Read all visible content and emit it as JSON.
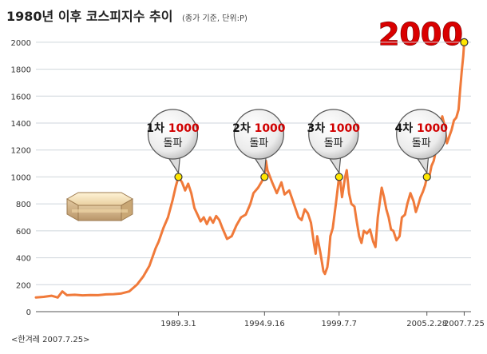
{
  "title": "1980년 이후 코스피지수 추이",
  "subtitle": "(종가 기준, 단위:P)",
  "credit": "<한겨레 2007.7.25>",
  "headline_value": "2000",
  "colors": {
    "line": "#f07a3a",
    "milestone_fill": "#ffe600",
    "headline": "#d90000",
    "gridline": "#cfd6dc"
  },
  "chart_data": {
    "type": "line",
    "title": "1980년 이후 코스피지수 추이",
    "subtitle": "(종가 기준, 단위:P)",
    "xlabel": "",
    "ylabel": "",
    "ylim": [
      0,
      2100
    ],
    "yticks": [
      0,
      200,
      400,
      600,
      800,
      1000,
      1200,
      1400,
      1600,
      1800,
      2000
    ],
    "xlim": [
      1980.0,
      2008.0
    ],
    "xtick_labels": [
      "1989.3.1",
      "1994.9.16",
      "1999.7.7",
      "2005.2.28",
      "2007.7.25"
    ],
    "xtick_values": [
      1989.17,
      1994.71,
      1999.51,
      2005.16,
      2007.56
    ],
    "grid": "horizontal",
    "legend": "none",
    "series": [
      {
        "values": [
          [
            1980.0,
            105
          ],
          [
            1980.5,
            110
          ],
          [
            1981.0,
            118
          ],
          [
            1981.4,
            105
          ],
          [
            1981.7,
            150
          ],
          [
            1982.0,
            122
          ],
          [
            1982.5,
            125
          ],
          [
            1983.0,
            121
          ],
          [
            1983.5,
            123
          ],
          [
            1984.0,
            122
          ],
          [
            1984.5,
            128
          ],
          [
            1985.0,
            130
          ],
          [
            1985.5,
            135
          ],
          [
            1986.0,
            150
          ],
          [
            1986.5,
            200
          ],
          [
            1986.9,
            260
          ],
          [
            1987.3,
            340
          ],
          [
            1987.7,
            470
          ],
          [
            1987.9,
            520
          ],
          [
            1988.2,
            620
          ],
          [
            1988.5,
            700
          ],
          [
            1988.8,
            830
          ],
          [
            1989.0,
            930
          ],
          [
            1989.17,
            1000
          ],
          [
            1989.4,
            960
          ],
          [
            1989.6,
            900
          ],
          [
            1989.8,
            950
          ],
          [
            1990.0,
            880
          ],
          [
            1990.2,
            770
          ],
          [
            1990.4,
            720
          ],
          [
            1990.6,
            670
          ],
          [
            1990.8,
            700
          ],
          [
            1991.0,
            650
          ],
          [
            1991.2,
            700
          ],
          [
            1991.4,
            660
          ],
          [
            1991.6,
            710
          ],
          [
            1991.8,
            680
          ],
          [
            1992.0,
            620
          ],
          [
            1992.3,
            540
          ],
          [
            1992.6,
            560
          ],
          [
            1992.9,
            640
          ],
          [
            1993.2,
            700
          ],
          [
            1993.5,
            720
          ],
          [
            1993.8,
            800
          ],
          [
            1994.0,
            880
          ],
          [
            1994.3,
            920
          ],
          [
            1994.71,
            1000
          ],
          [
            1994.8,
            1120
          ],
          [
            1994.9,
            1050
          ],
          [
            1995.2,
            960
          ],
          [
            1995.5,
            880
          ],
          [
            1995.8,
            960
          ],
          [
            1996.0,
            870
          ],
          [
            1996.3,
            900
          ],
          [
            1996.6,
            800
          ],
          [
            1996.9,
            700
          ],
          [
            1997.1,
            680
          ],
          [
            1997.3,
            760
          ],
          [
            1997.5,
            730
          ],
          [
            1997.7,
            660
          ],
          [
            1997.9,
            500
          ],
          [
            1998.0,
            430
          ],
          [
            1998.1,
            560
          ],
          [
            1998.3,
            440
          ],
          [
            1998.5,
            300
          ],
          [
            1998.6,
            280
          ],
          [
            1998.75,
            330
          ],
          [
            1998.85,
            420
          ],
          [
            1998.95,
            560
          ],
          [
            1999.1,
            620
          ],
          [
            1999.3,
            800
          ],
          [
            1999.51,
            1000
          ],
          [
            1999.6,
            960
          ],
          [
            1999.7,
            850
          ],
          [
            1999.9,
            1000
          ],
          [
            2000.0,
            1050
          ],
          [
            2000.15,
            880
          ],
          [
            2000.3,
            800
          ],
          [
            2000.5,
            780
          ],
          [
            2000.6,
            700
          ],
          [
            2000.8,
            560
          ],
          [
            2000.95,
            510
          ],
          [
            2001.1,
            600
          ],
          [
            2001.3,
            580
          ],
          [
            2001.5,
            610
          ],
          [
            2001.7,
            520
          ],
          [
            2001.85,
            480
          ],
          [
            2002.0,
            700
          ],
          [
            2002.25,
            920
          ],
          [
            2002.4,
            850
          ],
          [
            2002.55,
            760
          ],
          [
            2002.7,
            700
          ],
          [
            2002.85,
            610
          ],
          [
            2003.0,
            600
          ],
          [
            2003.2,
            530
          ],
          [
            2003.4,
            560
          ],
          [
            2003.55,
            700
          ],
          [
            2003.75,
            720
          ],
          [
            2003.9,
            800
          ],
          [
            2004.1,
            880
          ],
          [
            2004.3,
            820
          ],
          [
            2004.45,
            740
          ],
          [
            2004.6,
            790
          ],
          [
            2004.75,
            850
          ],
          [
            2004.9,
            890
          ],
          [
            2005.05,
            940
          ],
          [
            2005.16,
            1000
          ],
          [
            2005.3,
            990
          ],
          [
            2005.45,
            1080
          ],
          [
            2005.6,
            1120
          ],
          [
            2005.75,
            1200
          ],
          [
            2005.9,
            1360
          ],
          [
            2006.05,
            1400
          ],
          [
            2006.15,
            1450
          ],
          [
            2006.3,
            1380
          ],
          [
            2006.45,
            1250
          ],
          [
            2006.6,
            1300
          ],
          [
            2006.75,
            1350
          ],
          [
            2006.9,
            1420
          ],
          [
            2007.05,
            1440
          ],
          [
            2007.2,
            1500
          ],
          [
            2007.3,
            1650
          ],
          [
            2007.4,
            1780
          ],
          [
            2007.5,
            1900
          ],
          [
            2007.56,
            2000
          ]
        ]
      }
    ],
    "milestones": [
      {
        "x": 1989.17,
        "y": 1000,
        "line1_prefix": "1차",
        "line1_value": "1000",
        "line2": "돌파"
      },
      {
        "x": 1994.71,
        "y": 1000,
        "line1_prefix": "2차",
        "line1_value": "1000",
        "line2": "돌파"
      },
      {
        "x": 1999.51,
        "y": 1000,
        "line1_prefix": "3차",
        "line1_value": "1000",
        "line2": "돌파"
      },
      {
        "x": 2005.16,
        "y": 1000,
        "line1_prefix": "4차",
        "line1_value": "1000",
        "line2": "돌파"
      }
    ],
    "peak": {
      "x": 2007.56,
      "y": 2000
    }
  }
}
